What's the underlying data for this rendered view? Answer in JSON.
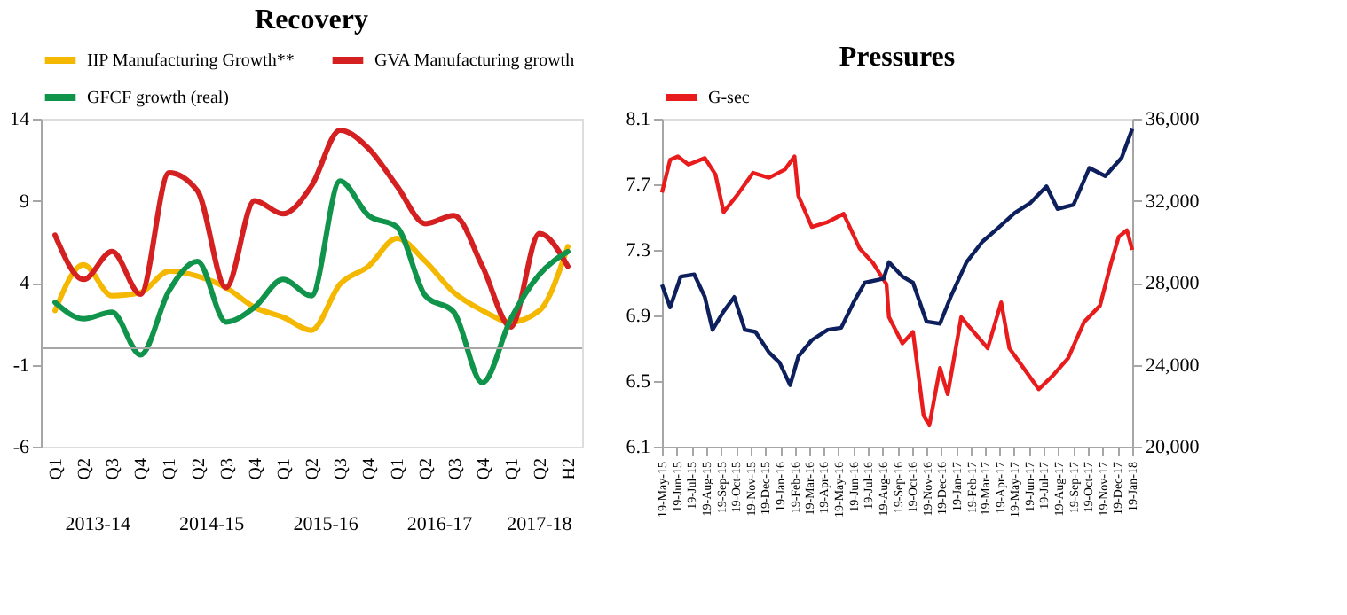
{
  "chart_data": [
    {
      "type": "line",
      "title": "Recovery",
      "categories": [
        "Q1",
        "Q2",
        "Q3",
        "Q4",
        "Q1",
        "Q2",
        "Q3",
        "Q4",
        "Q1",
        "Q2",
        "Q3",
        "Q4",
        "Q1",
        "Q2",
        "Q3",
        "Q4",
        "Q1",
        "Q2",
        "H2"
      ],
      "annotations": [
        "2013-14",
        "2014-15",
        "2015-16",
        "2016-17",
        "2017-18"
      ],
      "ylim": [
        -6,
        14
      ],
      "yticks": [
        -6,
        -1,
        4,
        9,
        14
      ],
      "legend": "top",
      "grid": false,
      "ref_lines": [
        {
          "axis": "y",
          "value": 0,
          "color": "#a6a6a6"
        }
      ],
      "series": [
        {
          "name": "IIP Manufacturing Growth**",
          "color": "#f5b800",
          "values": [
            2.3,
            5.1,
            3.2,
            3.4,
            4.7,
            4.4,
            3.7,
            2.5,
            1.9,
            1.1,
            3.9,
            5.0,
            6.7,
            5.3,
            3.4,
            2.3,
            1.6,
            2.3,
            6.2
          ]
        },
        {
          "name": "GVA Manufacturing growth",
          "color": "#d42020",
          "values": [
            6.9,
            4.2,
            5.9,
            3.3,
            10.7,
            9.6,
            3.7,
            9.0,
            8.2,
            9.9,
            13.3,
            12.2,
            9.9,
            7.6,
            8.1,
            5.0,
            1.3,
            7.0,
            5.0
          ]
        },
        {
          "name": "GFCF growth (real)",
          "color": "#10934a",
          "values": [
            2.8,
            1.8,
            2.2,
            -0.4,
            3.5,
            5.3,
            1.6,
            2.5,
            4.2,
            3.2,
            10.2,
            8.1,
            7.4,
            3.2,
            2.2,
            -2.1,
            1.8,
            4.5,
            5.9
          ]
        }
      ]
    },
    {
      "type": "line",
      "title": "Pressures",
      "xlim": [
        "2015-05-19",
        "2018-01-19"
      ],
      "xticks": [
        {
          "value": "2015-05-19",
          "label": "19-May-15"
        },
        {
          "value": "2015-06-19",
          "label": "19-Jun-15"
        },
        {
          "value": "2015-07-19",
          "label": "19-Jul-15"
        },
        {
          "value": "2015-08-19",
          "label": "19-Aug-15"
        },
        {
          "value": "2015-09-19",
          "label": "19-Sep-15"
        },
        {
          "value": "2015-10-19",
          "label": "19-Oct-15"
        },
        {
          "value": "2015-11-19",
          "label": "19-Nov-15"
        },
        {
          "value": "2015-12-19",
          "label": "19-Dec-15"
        },
        {
          "value": "2016-01-19",
          "label": "19-Jan-16"
        },
        {
          "value": "2016-02-19",
          "label": "19-Feb-16"
        },
        {
          "value": "2016-03-19",
          "label": "19-Mar-16"
        },
        {
          "value": "2016-04-19",
          "label": "19-Apr-16"
        },
        {
          "value": "2016-05-19",
          "label": "19-May-16"
        },
        {
          "value": "2016-06-19",
          "label": "19-Jun-16"
        },
        {
          "value": "2016-07-19",
          "label": "19-Jul-16"
        },
        {
          "value": "2016-08-19",
          "label": "19-Aug-16"
        },
        {
          "value": "2016-09-19",
          "label": "19-Sep-16"
        },
        {
          "value": "2016-10-19",
          "label": "19-Oct-16"
        },
        {
          "value": "2016-11-19",
          "label": "19-Nov-16"
        },
        {
          "value": "2016-12-19",
          "label": "19-Dec-16"
        },
        {
          "value": "2017-01-19",
          "label": "19-Jan-17"
        },
        {
          "value": "2017-02-19",
          "label": "19-Feb-17"
        },
        {
          "value": "2017-03-19",
          "label": "19-Mar-17"
        },
        {
          "value": "2017-04-19",
          "label": "19-Apr-17"
        },
        {
          "value": "2017-05-19",
          "label": "19-May-17"
        },
        {
          "value": "2017-06-19",
          "label": "19-Jun-17"
        },
        {
          "value": "2017-07-19",
          "label": "19-Jul-17"
        },
        {
          "value": "2017-08-19",
          "label": "19-Aug-17"
        },
        {
          "value": "2017-09-19",
          "label": "19-Sep-17"
        },
        {
          "value": "2017-10-19",
          "label": "19-Oct-17"
        },
        {
          "value": "2017-11-19",
          "label": "19-Nov-17"
        },
        {
          "value": "2017-12-19",
          "label": "19-Dec-17"
        },
        {
          "value": "2018-01-19",
          "label": "19-Jan-18"
        }
      ],
      "ylim": [
        6.1,
        8.1
      ],
      "yticks": [
        6.1,
        6.5,
        6.9,
        7.3,
        7.7,
        8.1
      ],
      "y2lim": [
        20000,
        36000
      ],
      "y2ticks": [
        {
          "value": 20000,
          "label": "20,000"
        },
        {
          "value": 24000,
          "label": "24,000"
        },
        {
          "value": 28000,
          "label": "28,000"
        },
        {
          "value": 32000,
          "label": "32,000"
        },
        {
          "value": 36000,
          "label": "36,000"
        }
      ],
      "legend": "top",
      "grid": false,
      "series": [
        {
          "name": "G-sec",
          "color": "#e81c1c",
          "x": [
            "2015-05-19",
            "2015-06-05",
            "2015-06-21",
            "2015-07-13",
            "2015-08-16",
            "2015-09-07",
            "2015-09-24",
            "2015-10-21",
            "2015-11-24",
            "2015-12-27",
            "2016-01-29",
            "2016-02-18",
            "2016-02-26",
            "2016-03-25",
            "2016-04-27",
            "2016-05-30",
            "2016-07-02",
            "2016-07-30",
            "2016-08-27",
            "2016-09-01",
            "2016-09-29",
            "2016-10-21",
            "2016-11-12",
            "2016-11-24",
            "2016-12-16",
            "2017-01-01",
            "2017-01-29",
            "2017-02-15",
            "2017-03-25",
            "2017-04-22",
            "2017-05-09",
            "2017-05-31",
            "2017-07-09",
            "2017-08-06",
            "2017-09-08",
            "2017-10-11",
            "2017-11-13",
            "2017-12-06",
            "2017-12-22",
            "2018-01-08",
            "2018-01-19"
          ],
          "values": [
            7.65,
            7.85,
            7.87,
            7.82,
            7.86,
            7.76,
            7.53,
            7.63,
            7.77,
            7.74,
            7.79,
            7.87,
            7.63,
            7.44,
            7.47,
            7.52,
            7.31,
            7.22,
            7.09,
            6.89,
            6.73,
            6.8,
            6.29,
            6.23,
            6.58,
            6.42,
            6.89,
            6.83,
            6.7,
            6.98,
            6.7,
            6.61,
            6.45,
            6.53,
            6.64,
            6.86,
            6.96,
            7.22,
            7.38,
            7.42,
            7.3
          ]
        },
        {
          "color": "#0d1f5c",
          "axis": "y2",
          "x": [
            "2015-05-19",
            "2015-06-05",
            "2015-06-27",
            "2015-07-25",
            "2015-08-16",
            "2015-09-01",
            "2015-09-24",
            "2015-10-16",
            "2015-11-07",
            "2015-11-29",
            "2015-12-27",
            "2016-01-18",
            "2016-02-09",
            "2016-02-26",
            "2016-03-25",
            "2016-04-27",
            "2016-05-25",
            "2016-06-21",
            "2016-07-13",
            "2016-08-21",
            "2016-09-01",
            "2016-09-29",
            "2016-10-21",
            "2016-11-18",
            "2016-12-16",
            "2017-01-07",
            "2017-02-09",
            "2017-03-14",
            "2017-04-17",
            "2017-05-20",
            "2017-06-22",
            "2017-07-25",
            "2017-08-17",
            "2017-09-19",
            "2017-10-22",
            "2017-11-24",
            "2017-12-28",
            "2018-01-19"
          ],
          "values": [
            27900,
            26800,
            28300,
            28400,
            27300,
            25700,
            26600,
            27300,
            25700,
            25600,
            24600,
            24100,
            23000,
            24400,
            25200,
            25700,
            25800,
            27100,
            28000,
            28200,
            29000,
            28300,
            28000,
            26100,
            26000,
            27300,
            29000,
            30000,
            30700,
            31400,
            31900,
            32700,
            31600,
            31800,
            33600,
            33200,
            34100,
            35500
          ]
        }
      ]
    }
  ]
}
